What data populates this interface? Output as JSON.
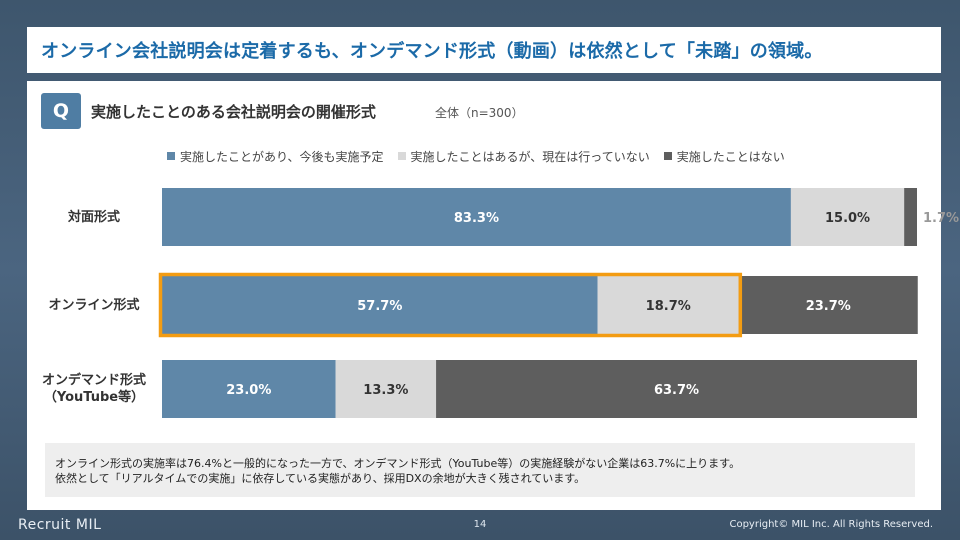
{
  "slide": {
    "title": "オンライン会社説明会は定着するも、オンデマンド形式（動画）は依然として「未踏」の領域。",
    "q_badge": "Q",
    "question": "実施したことのある会社説明会の開催形式",
    "question_note": "全体（n=300）",
    "note_line1": "オンライン形式の実施率は76.4%と一般的になった一方で、オンデマンド形式（YouTube等）の実施経験がない企業は63.7%に上ります。",
    "note_line2": "依然として「リアルタイムでの実施」に依存している実態があり、採用DXの余地が大きく残されています。",
    "footer_logo": "Recruit MIL",
    "page_number": "14",
    "copyright": "Copyright© MIL Inc. All Rights Reserved."
  },
  "colors": {
    "implemented_continue": "#5f87a8",
    "implemented_not_now": "#d9d9d9",
    "never_implemented": "#5e5e5e",
    "highlight": "#f39c12",
    "title": "#1b6aa8"
  },
  "chart_data": {
    "type": "bar",
    "orientation": "horizontal",
    "stacked": true,
    "unit": "%",
    "categories": [
      "対面形式",
      "オンライン形式",
      "オンデマンド形式（YouTube等）"
    ],
    "category_lines": [
      [
        "対面形式"
      ],
      [
        "オンライン形式"
      ],
      [
        "オンデマンド形式",
        "（YouTube等）"
      ]
    ],
    "series": [
      {
        "name": "実施したことがあり、今後も実施予定",
        "values": [
          83.3,
          57.7,
          23.0
        ],
        "labels": [
          "83.3%",
          "57.7%",
          "23.0%"
        ],
        "color": "#5f87a8"
      },
      {
        "name": "実施したことはあるが、現在は行っていない",
        "values": [
          15.0,
          18.7,
          13.3
        ],
        "labels": [
          "15.0%",
          "18.7%",
          "13.3%"
        ],
        "color": "#d9d9d9"
      },
      {
        "name": "実施したことはない",
        "values": [
          1.7,
          23.7,
          63.7
        ],
        "labels": [
          "1.7%",
          "23.7%",
          "63.7%"
        ],
        "color": "#5e5e5e"
      }
    ],
    "xlim": [
      0,
      100
    ],
    "legend_position": "top-right",
    "grid": false,
    "highlight": {
      "category": "オンライン形式",
      "series": [
        "実施したことがあり、今後も実施予定",
        "実施したことはあるが、現在は行っていない"
      ],
      "color": "#f39c12"
    }
  }
}
